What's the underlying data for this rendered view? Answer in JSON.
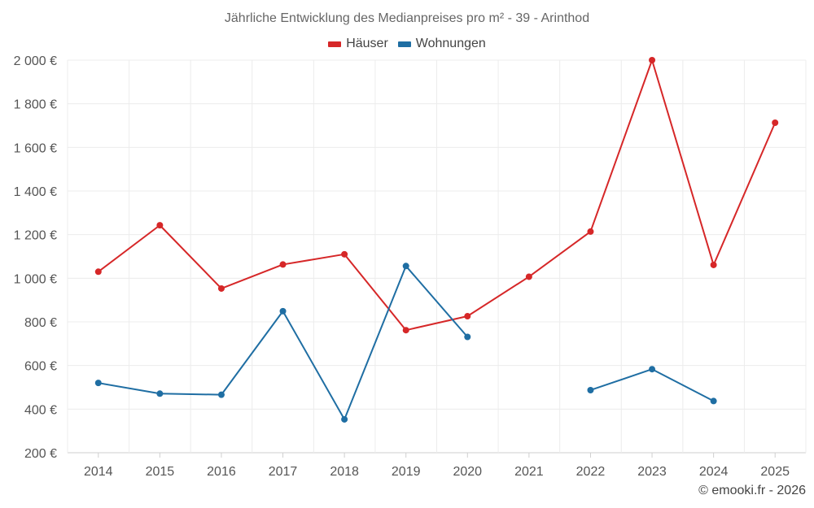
{
  "chart_data": {
    "type": "line",
    "title": "Jährliche Entwicklung des Medianpreises pro m² - 39 - Arinthod",
    "categories": [
      "2014",
      "2015",
      "2016",
      "2017",
      "2018",
      "2019",
      "2020",
      "2021",
      "2022",
      "2023",
      "2024",
      "2025"
    ],
    "y_ticks": [
      "200 €",
      "400 €",
      "600 €",
      "800 €",
      "1 000 €",
      "1 200 €",
      "1 400 €",
      "1 600 €",
      "1 800 €",
      "2 000 €"
    ],
    "ylim": [
      200,
      2000
    ],
    "xlabel": "",
    "ylabel": "",
    "grid": true,
    "legend_position": "top-center",
    "series": [
      {
        "name": "Häuser",
        "color": "#d62728",
        "values": [
          1030,
          1243,
          953,
          1063,
          1110,
          762,
          826,
          1007,
          1214,
          2000,
          1061,
          1713
        ]
      },
      {
        "name": "Wohnungen",
        "color": "#1f6ea3",
        "values": [
          520,
          471,
          466,
          849,
          353,
          1056,
          731,
          null,
          487,
          583,
          437,
          null
        ]
      }
    ]
  },
  "copyright": "© emooki.fr - 2026"
}
